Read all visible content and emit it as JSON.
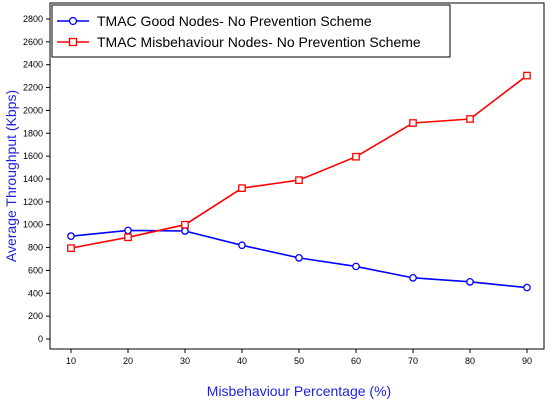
{
  "chart_data": {
    "type": "line",
    "title": "",
    "xlabel": "Misbehaviour Percentage (%)",
    "ylabel": "Average Throughput (Kbps)",
    "x": [
      10,
      20,
      30,
      40,
      50,
      60,
      70,
      80,
      90
    ],
    "xlim": [
      10,
      90
    ],
    "ylim": [
      0,
      2800
    ],
    "yticks": [
      0,
      200,
      400,
      600,
      800,
      1000,
      1200,
      1400,
      1600,
      1800,
      2000,
      2200,
      2400,
      2600,
      2800
    ],
    "grid": false,
    "legend_position": "top-left",
    "label_color": "#1f1fe0",
    "series": [
      {
        "name": "TMAC Good Nodes- No Prevention Scheme",
        "values": [
          900,
          950,
          945,
          820,
          710,
          635,
          535,
          500,
          450
        ],
        "color": "#0000ff",
        "marker": "circle"
      },
      {
        "name": "TMAC Misbehaviour Nodes- No Prevention Scheme",
        "values": [
          795,
          890,
          1000,
          1320,
          1390,
          1595,
          1890,
          1925,
          2305
        ],
        "color": "#ff0000",
        "marker": "square"
      }
    ]
  }
}
